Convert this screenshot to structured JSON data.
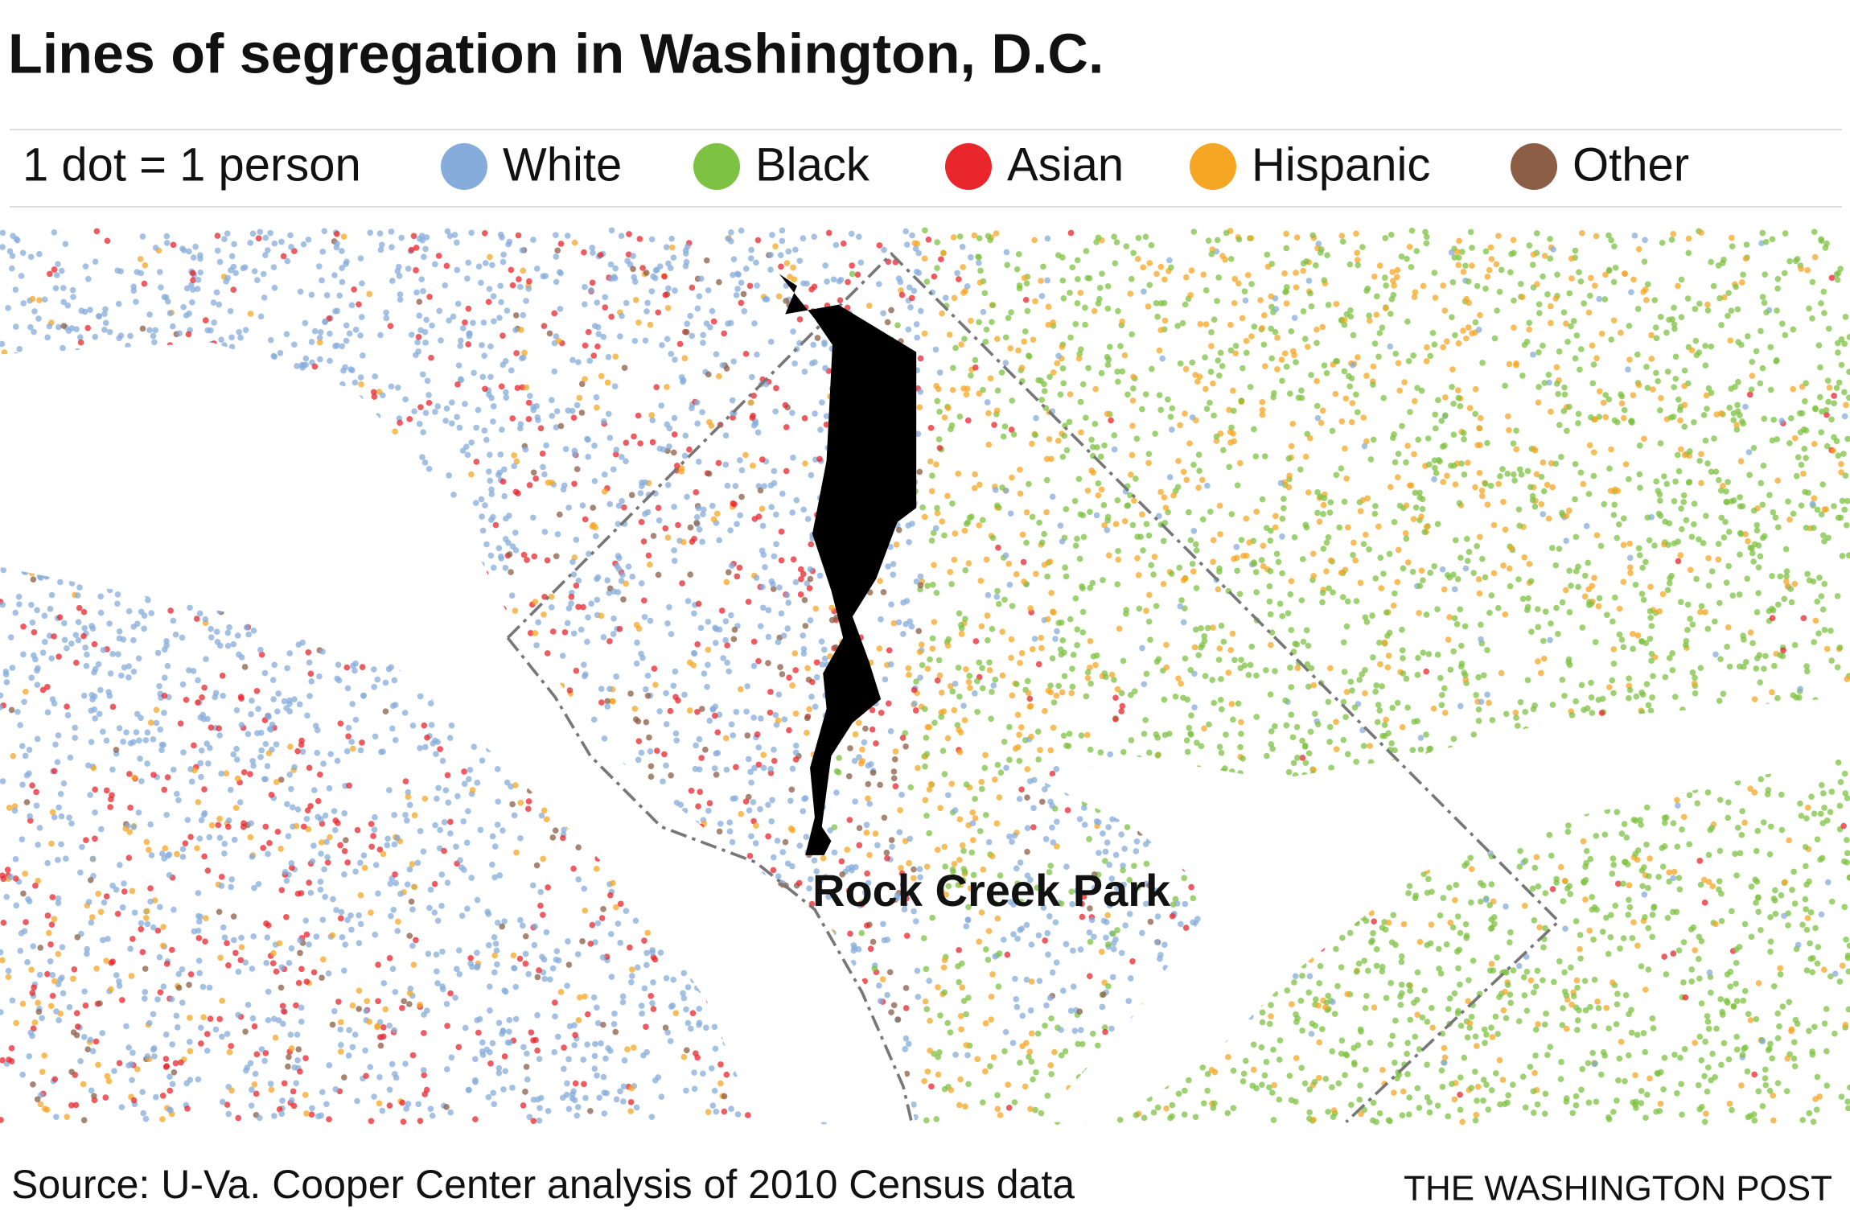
{
  "title": "Lines of segregation in Washington, D.C.",
  "legend": {
    "scale": "1 dot = 1 person",
    "items": [
      {
        "label": "White",
        "color": "#85acdb"
      },
      {
        "label": "Black",
        "color": "#7dc242"
      },
      {
        "label": "Asian",
        "color": "#e8262c"
      },
      {
        "label": "Hispanic",
        "color": "#f5a623"
      },
      {
        "label": "Other",
        "color": "#8b5e45"
      }
    ]
  },
  "map": {
    "label": "Rock Creek Park"
  },
  "footer": {
    "source": "Source: U-Va. Cooper Center analysis of 2010 Census data",
    "credit": "THE WASHINGTON POST"
  }
}
